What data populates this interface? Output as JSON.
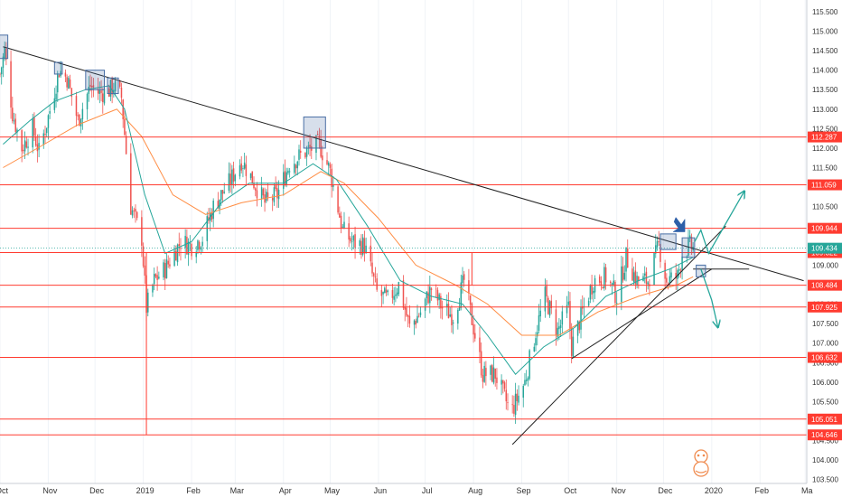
{
  "chart_data": {
    "type": "candlestick",
    "y_axis": {
      "position": "right",
      "range": [
        103.4,
        115.8
      ],
      "ticks": [
        "115.500",
        "115.000",
        "114.500",
        "114.000",
        "113.500",
        "113.000",
        "112.500",
        "112.000",
        "111.500",
        "111.000",
        "110.500",
        "110.000",
        "109.500",
        "109.000",
        "108.500",
        "108.000",
        "107.500",
        "107.000",
        "106.500",
        "106.000",
        "105.500",
        "105.000",
        "104.500",
        "104.000",
        "103.500"
      ]
    },
    "x_axis": {
      "ticks": [
        {
          "label": "Oct",
          "date": "2018-10-01"
        },
        {
          "label": "Nov",
          "date": "2018-11-01"
        },
        {
          "label": "Dec",
          "date": "2018-12-01"
        },
        {
          "label": "2019",
          "date": "2019-01-01"
        },
        {
          "label": "Feb",
          "date": "2019-02-01"
        },
        {
          "label": "Mar",
          "date": "2019-03-01"
        },
        {
          "label": "Apr",
          "date": "2019-04-01"
        },
        {
          "label": "May",
          "date": "2019-05-01"
        },
        {
          "label": "Jun",
          "date": "2019-06-01"
        },
        {
          "label": "Jul",
          "date": "2019-07-01"
        },
        {
          "label": "Aug",
          "date": "2019-08-01"
        },
        {
          "label": "Sep",
          "date": "2019-09-01"
        },
        {
          "label": "Oct",
          "date": "2019-10-01"
        },
        {
          "label": "Nov",
          "date": "2019-11-01"
        },
        {
          "label": "Dec",
          "date": "2019-12-01"
        },
        {
          "label": "2020",
          "date": "2020-01-01"
        },
        {
          "label": "Feb",
          "date": "2020-02-01"
        },
        {
          "label": "Ma",
          "date": "2020-03-01"
        }
      ],
      "range": [
        "2018-10-01",
        "2020-03-02"
      ]
    },
    "colors": {
      "up": "#26a69a",
      "down": "#ef5350",
      "level": "#ff3b30",
      "ema_fast": "#26a69a",
      "ema_slow": "#ff8c42",
      "trendline": "#222222",
      "arrow": "#26a69a",
      "box": "#4a6fa5",
      "marker": "#2d5fa8"
    },
    "price_path": [
      [
        "2018-10-01",
        113.9
      ],
      [
        "2018-10-04",
        114.5
      ],
      [
        "2018-10-09",
        112.9
      ],
      [
        "2018-10-15",
        112.0
      ],
      [
        "2018-10-22",
        112.5
      ],
      [
        "2018-10-26",
        111.9
      ],
      [
        "2018-11-01",
        112.8
      ],
      [
        "2018-11-08",
        114.0
      ],
      [
        "2018-11-13",
        113.8
      ],
      [
        "2018-11-20",
        112.7
      ],
      [
        "2018-11-28",
        113.6
      ],
      [
        "2018-12-04",
        113.4
      ],
      [
        "2018-12-11",
        113.5
      ],
      [
        "2018-12-13",
        113.6
      ],
      [
        "2018-12-18",
        113.3
      ],
      [
        "2018-12-24",
        110.5
      ],
      [
        "2018-12-31",
        109.7
      ],
      [
        "2019-01-03",
        107.9
      ],
      [
        "2019-01-08",
        108.6
      ],
      [
        "2019-01-15",
        108.9
      ],
      [
        "2019-01-25",
        109.6
      ],
      [
        "2019-02-01",
        109.5
      ],
      [
        "2019-02-08",
        109.7
      ],
      [
        "2019-02-15",
        110.5
      ],
      [
        "2019-02-25",
        111.1
      ],
      [
        "2019-03-05",
        111.7
      ],
      [
        "2019-03-12",
        111.2
      ],
      [
        "2019-03-20",
        110.6
      ],
      [
        "2019-03-28",
        110.8
      ],
      [
        "2019-04-05",
        111.6
      ],
      [
        "2019-04-15",
        111.9
      ],
      [
        "2019-04-24",
        112.1
      ],
      [
        "2019-05-01",
        111.4
      ],
      [
        "2019-05-09",
        109.9
      ],
      [
        "2019-05-15",
        109.6
      ],
      [
        "2019-05-23",
        109.5
      ],
      [
        "2019-05-31",
        108.3
      ],
      [
        "2019-06-07",
        108.1
      ],
      [
        "2019-06-14",
        108.5
      ],
      [
        "2019-06-21",
        107.4
      ],
      [
        "2019-06-28",
        107.8
      ],
      [
        "2019-07-05",
        108.4
      ],
      [
        "2019-07-12",
        107.9
      ],
      [
        "2019-07-19",
        107.7
      ],
      [
        "2019-07-26",
        108.6
      ],
      [
        "2019-08-01",
        107.4
      ],
      [
        "2019-08-07",
        106.2
      ],
      [
        "2019-08-15",
        106.2
      ],
      [
        "2019-08-23",
        105.4
      ],
      [
        "2019-08-26",
        105.3
      ],
      [
        "2019-09-03",
        106.0
      ],
      [
        "2019-09-10",
        107.3
      ],
      [
        "2019-09-16",
        108.2
      ],
      [
        "2019-09-24",
        107.3
      ],
      [
        "2019-10-01",
        107.9
      ],
      [
        "2019-10-03",
        106.9
      ],
      [
        "2019-10-10",
        107.8
      ],
      [
        "2019-10-17",
        108.6
      ],
      [
        "2019-10-25",
        108.7
      ],
      [
        "2019-11-01",
        108.2
      ],
      [
        "2019-11-07",
        109.2
      ],
      [
        "2019-11-14",
        108.6
      ],
      [
        "2019-11-21",
        108.6
      ],
      [
        "2019-11-28",
        109.5
      ],
      [
        "2019-12-03",
        108.6
      ],
      [
        "2019-12-10",
        108.7
      ],
      [
        "2019-12-13",
        109.3
      ],
      [
        "2019-12-18",
        109.5
      ],
      [
        "2019-12-20",
        109.43
      ]
    ],
    "ema_fast_path": [
      [
        "2018-10-03",
        112.1
      ],
      [
        "2018-10-20",
        112.7
      ],
      [
        "2018-11-05",
        113.2
      ],
      [
        "2018-11-25",
        113.5
      ],
      [
        "2018-12-10",
        113.6
      ],
      [
        "2018-12-20",
        113.0
      ],
      [
        "2019-01-02",
        110.8
      ],
      [
        "2019-01-15",
        109.3
      ],
      [
        "2019-02-01",
        109.6
      ],
      [
        "2019-02-20",
        110.6
      ],
      [
        "2019-03-10",
        111.1
      ],
      [
        "2019-04-01",
        111.1
      ],
      [
        "2019-04-20",
        111.6
      ],
      [
        "2019-05-05",
        111.2
      ],
      [
        "2019-05-25",
        110.0
      ],
      [
        "2019-06-15",
        108.6
      ],
      [
        "2019-07-05",
        108.2
      ],
      [
        "2019-07-25",
        108.0
      ],
      [
        "2019-08-10",
        107.2
      ],
      [
        "2019-08-28",
        106.2
      ],
      [
        "2019-09-15",
        106.9
      ],
      [
        "2019-10-05",
        107.4
      ],
      [
        "2019-10-25",
        108.2
      ],
      [
        "2019-11-15",
        108.6
      ],
      [
        "2019-12-05",
        108.9
      ],
      [
        "2019-12-20",
        109.2
      ]
    ],
    "ema_slow_path": [
      [
        "2018-10-03",
        111.5
      ],
      [
        "2018-10-25",
        112.0
      ],
      [
        "2018-11-20",
        112.6
      ],
      [
        "2018-12-15",
        113.0
      ],
      [
        "2018-12-31",
        112.3
      ],
      [
        "2019-01-20",
        110.8
      ],
      [
        "2019-02-10",
        110.3
      ],
      [
        "2019-03-05",
        110.6
      ],
      [
        "2019-04-01",
        110.8
      ],
      [
        "2019-04-25",
        111.4
      ],
      [
        "2019-05-10",
        111.1
      ],
      [
        "2019-06-01",
        110.2
      ],
      [
        "2019-06-25",
        109.0
      ],
      [
        "2019-07-20",
        108.5
      ],
      [
        "2019-08-10",
        108.0
      ],
      [
        "2019-09-01",
        107.2
      ],
      [
        "2019-09-25",
        107.2
      ],
      [
        "2019-10-20",
        107.8
      ],
      [
        "2019-11-15",
        108.2
      ],
      [
        "2019-12-10",
        108.5
      ],
      [
        "2019-12-20",
        108.7
      ]
    ],
    "horizontal_levels": [
      {
        "value": 112.287,
        "label": "112.287",
        "start": "2018-10-01"
      },
      {
        "value": 111.059,
        "label": "111.059",
        "start": "2018-10-01"
      },
      {
        "value": 109.944,
        "label": "109.944",
        "start": "2018-10-01"
      },
      {
        "value": 109.322,
        "label": "109.322",
        "start": "2018-10-01"
      },
      {
        "value": 108.484,
        "label": "108.484",
        "start": "2018-10-01"
      },
      {
        "value": 107.925,
        "label": "107.925",
        "start": "2018-10-01"
      },
      {
        "value": 106.632,
        "label": "106.632",
        "start": "2018-10-01"
      },
      {
        "value": 105.051,
        "label": "105.051",
        "start": "2018-10-01"
      },
      {
        "value": 104.646,
        "label": "104.646",
        "start": "2018-10-01"
      }
    ],
    "current_price": {
      "value": 109.434,
      "label": "109.434"
    },
    "vertical_markers": [
      {
        "date": "2019-01-03",
        "from": 104.646,
        "to": 109.32
      },
      {
        "date": "2019-07-31",
        "from": 108.484,
        "to": 109.32
      }
    ],
    "trendlines": [
      {
        "from": [
          "2018-10-03",
          114.6
        ],
        "to": [
          "2020-02-29",
          108.6
        ]
      },
      {
        "from": [
          "2019-08-26",
          104.4
        ],
        "to": [
          "2020-01-10",
          110.0
        ]
      },
      {
        "from": [
          "2019-10-03",
          106.6
        ],
        "to": [
          "2020-01-01",
          108.9
        ]
      },
      {
        "from": [
          "2019-12-20",
          108.9
        ],
        "to": [
          "2020-01-25",
          108.9
        ]
      }
    ],
    "highlight_boxes": [
      {
        "from": [
          "2018-09-30",
          114.3
        ],
        "to": [
          "2018-10-06",
          114.9
        ]
      },
      {
        "from": [
          "2018-11-05",
          113.9
        ],
        "to": [
          "2018-11-10",
          114.2
        ]
      },
      {
        "from": [
          "2018-11-25",
          113.5
        ],
        "to": [
          "2018-12-07",
          114.0
        ]
      },
      {
        "from": [
          "2018-12-09",
          113.4
        ],
        "to": [
          "2018-12-16",
          113.8
        ]
      },
      {
        "from": [
          "2019-04-14",
          112.0
        ],
        "to": [
          "2019-04-28",
          112.8
        ]
      },
      {
        "from": [
          "2019-11-29",
          109.4
        ],
        "to": [
          "2019-12-09",
          109.8
        ]
      },
      {
        "from": [
          "2019-12-13",
          109.2
        ],
        "to": [
          "2019-12-21",
          109.7
        ]
      },
      {
        "from": [
          "2019-12-22",
          108.7
        ],
        "to": [
          "2019-12-28",
          109.0
        ]
      }
    ],
    "scenario_arrows": [
      {
        "points": [
          [
            "2019-12-21",
            109.6
          ],
          [
            "2019-12-25",
            109.9
          ],
          [
            "2019-12-30",
            109.3
          ],
          [
            "2020-01-22",
            110.9
          ]
        ]
      },
      {
        "points": [
          [
            "2019-12-25",
            108.9
          ],
          [
            "2020-01-01",
            108.1
          ],
          [
            "2020-01-05",
            107.4
          ]
        ]
      }
    ],
    "pointer_marker": {
      "at": [
        "2019-12-13",
        109.9
      ]
    }
  }
}
